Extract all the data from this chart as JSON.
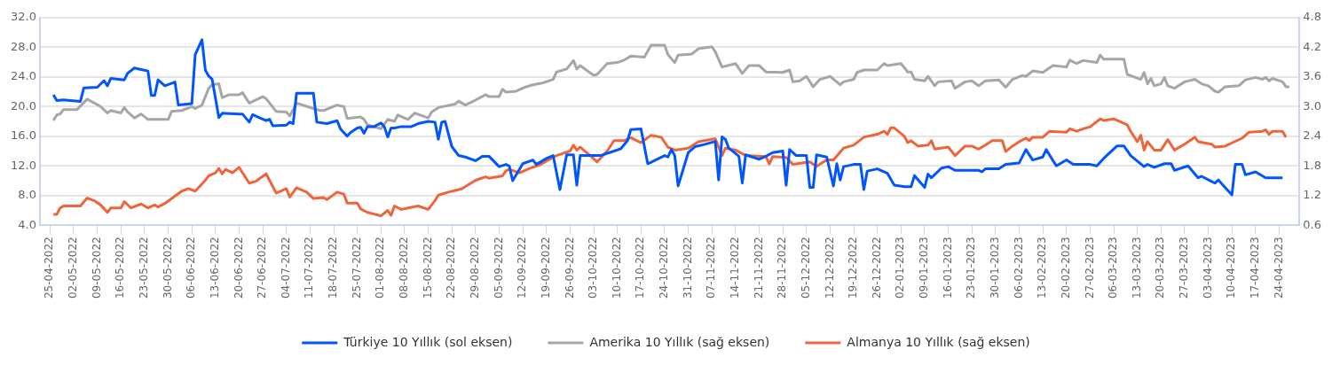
{
  "chart_data": {
    "type": "line",
    "grid": "y",
    "legend": "bottom",
    "xlim": [
      "2022-04-22",
      "2023-04-30"
    ],
    "xticks": [
      {
        "value": "2022-04-25",
        "label": "25-04-2022"
      },
      {
        "value": "2022-05-02",
        "label": "02-05-2022"
      },
      {
        "value": "2022-05-09",
        "label": "09-05-2022"
      },
      {
        "value": "2022-05-16",
        "label": "16-05-2022"
      },
      {
        "value": "2022-05-23",
        "label": "23-05-2022"
      },
      {
        "value": "2022-05-30",
        "label": "30-05-2022"
      },
      {
        "value": "2022-06-06",
        "label": "06-06-2022"
      },
      {
        "value": "2022-06-13",
        "label": "13-06-2022"
      },
      {
        "value": "2022-06-20",
        "label": "20-06-2022"
      },
      {
        "value": "2022-06-27",
        "label": "27-06-2022"
      },
      {
        "value": "2022-07-04",
        "label": "04-07-2022"
      },
      {
        "value": "2022-07-11",
        "label": "11-07-2022"
      },
      {
        "value": "2022-07-18",
        "label": "18-07-2022"
      },
      {
        "value": "2022-07-25",
        "label": "25-07-2022"
      },
      {
        "value": "2022-08-01",
        "label": "01-08-2022"
      },
      {
        "value": "2022-08-08",
        "label": "08-08-2022"
      },
      {
        "value": "2022-08-15",
        "label": "15-08-2022"
      },
      {
        "value": "2022-08-22",
        "label": "22-08-2022"
      },
      {
        "value": "2022-08-29",
        "label": "29-08-2022"
      },
      {
        "value": "2022-09-05",
        "label": "05-09-2022"
      },
      {
        "value": "2022-09-12",
        "label": "12-09-2022"
      },
      {
        "value": "2022-09-19",
        "label": "19-09-2022"
      },
      {
        "value": "2022-09-26",
        "label": "26-09-2022"
      },
      {
        "value": "2022-10-03",
        "label": "03-10-2022"
      },
      {
        "value": "2022-10-10",
        "label": "10-10-2022"
      },
      {
        "value": "2022-10-17",
        "label": "17-10-2022"
      },
      {
        "value": "2022-10-24",
        "label": "24-10-2022"
      },
      {
        "value": "2022-10-31",
        "label": "31-10-2022"
      },
      {
        "value": "2022-11-07",
        "label": "07-11-2022"
      },
      {
        "value": "2022-11-14",
        "label": "14-11-2022"
      },
      {
        "value": "2022-11-21",
        "label": "21-11-2022"
      },
      {
        "value": "2022-11-28",
        "label": "28-11-2022"
      },
      {
        "value": "2022-12-05",
        "label": "05-12-2022"
      },
      {
        "value": "2022-12-12",
        "label": "12-12-2022"
      },
      {
        "value": "2022-12-19",
        "label": "19-12-2022"
      },
      {
        "value": "2022-12-26",
        "label": "26-12-2022"
      },
      {
        "value": "2023-01-02",
        "label": "02-01-2023"
      },
      {
        "value": "2023-01-09",
        "label": "09-01-2023"
      },
      {
        "value": "2023-01-16",
        "label": "16-01-2023"
      },
      {
        "value": "2023-01-23",
        "label": "23-01-2023"
      },
      {
        "value": "2023-01-30",
        "label": "30-01-2023"
      },
      {
        "value": "2023-02-06",
        "label": "06-02-2023"
      },
      {
        "value": "2023-02-13",
        "label": "13-02-2023"
      },
      {
        "value": "2023-02-20",
        "label": "20-02-2023"
      },
      {
        "value": "2023-02-27",
        "label": "27-02-2023"
      },
      {
        "value": "2023-03-06",
        "label": "06-03-2023"
      },
      {
        "value": "2023-03-13",
        "label": "13-03-2023"
      },
      {
        "value": "2023-03-20",
        "label": "20-03-2023"
      },
      {
        "value": "2023-03-27",
        "label": "27-03-2023"
      },
      {
        "value": "2023-04-03",
        "label": "03-04-2023"
      },
      {
        "value": "2023-04-10",
        "label": "10-04-2023"
      },
      {
        "value": "2023-04-17",
        "label": "17-04-2023"
      },
      {
        "value": "2023-04-24",
        "label": "24-04-2023"
      }
    ],
    "ylim": [
      4,
      32
    ],
    "yticks": [
      {
        "value": 4,
        "label": "4.0"
      },
      {
        "value": 8,
        "label": "8.0"
      },
      {
        "value": 12,
        "label": "12.0"
      },
      {
        "value": 16,
        "label": "16.0"
      },
      {
        "value": 20,
        "label": "20.0"
      },
      {
        "value": 24,
        "label": "24.0"
      },
      {
        "value": 28,
        "label": "28.0"
      },
      {
        "value": 32,
        "label": "32.0"
      }
    ],
    "y2lim": [
      0.6,
      4.8
    ],
    "y2ticks": [
      0.6,
      1.2,
      1.8,
      2.4,
      {
        "value": 3,
        "label": "3.0"
      },
      3.6,
      4.2,
      4.8
    ],
    "series": [
      {
        "name": "Türkiye 10 Yıllık (sol eksen)",
        "color": "#0055ff",
        "x": [
          "2022-04-26",
          "2022-04-27",
          "2022-04-29",
          "2022-05-04",
          "2022-05-05",
          "2022-05-09",
          "2022-05-11",
          "2022-05-12",
          "2022-05-13",
          "2022-05-17",
          "2022-05-18",
          "2022-05-20",
          "2022-05-22",
          "2022-05-24",
          "2022-05-25",
          "2022-05-26",
          "2022-05-27",
          "2022-05-29",
          "2022-06-01",
          "2022-06-02",
          "2022-06-06",
          "2022-06-07",
          "2022-06-09",
          "2022-06-10",
          "2022-06-11",
          "2022-06-12",
          "2022-06-14",
          "2022-06-15",
          "2022-06-20",
          "2022-06-21",
          "2022-06-23",
          "2022-06-24",
          "2022-06-26",
          "2022-06-28",
          "2022-06-29",
          "2022-06-30",
          "2022-07-04",
          "2022-07-05",
          "2022-07-06",
          "2022-07-07",
          "2022-07-12",
          "2022-07-13",
          "2022-07-16",
          "2022-07-19",
          "2022-07-20",
          "2022-07-22",
          "2022-07-23",
          "2022-07-25",
          "2022-07-26",
          "2022-07-27",
          "2022-07-28",
          "2022-07-30",
          "2022-08-01",
          "2022-08-02",
          "2022-08-03",
          "2022-08-04",
          "2022-08-05",
          "2022-08-07",
          "2022-08-10",
          "2022-08-12",
          "2022-08-15",
          "2022-08-17",
          "2022-08-18",
          "2022-08-19",
          "2022-08-20",
          "2022-08-22",
          "2022-08-24",
          "2022-08-26",
          "2022-08-29",
          "2022-08-31",
          "2022-09-02",
          "2022-09-05",
          "2022-09-07",
          "2022-09-08",
          "2022-09-09",
          "2022-09-12",
          "2022-09-15",
          "2022-09-16",
          "2022-09-19",
          "2022-09-21",
          "2022-09-23",
          "2022-09-25",
          "2022-09-27",
          "2022-09-28",
          "2022-09-29",
          "2022-10-05",
          "2022-10-11",
          "2022-10-13",
          "2022-10-14",
          "2022-10-17",
          "2022-10-19",
          "2022-10-20",
          "2022-10-24",
          "2022-10-25",
          "2022-10-26",
          "2022-10-27",
          "2022-10-28",
          "2022-10-31",
          "2022-11-02",
          "2022-11-04",
          "2022-11-08",
          "2022-11-09",
          "2022-11-10",
          "2022-11-11",
          "2022-11-12",
          "2022-11-15",
          "2022-11-16",
          "2022-11-17",
          "2022-11-21",
          "2022-11-23",
          "2022-11-25",
          "2022-11-28",
          "2022-11-29",
          "2022-11-30",
          "2022-12-02",
          "2022-12-05",
          "2022-12-06",
          "2022-12-07",
          "2022-12-08",
          "2022-12-11",
          "2022-12-13",
          "2022-12-14",
          "2022-12-15",
          "2022-12-16",
          "2022-12-19",
          "2022-12-21",
          "2022-12-22",
          "2022-12-23",
          "2022-12-26",
          "2022-12-29",
          "2022-12-31",
          "2023-01-03",
          "2023-01-05",
          "2023-01-06",
          "2023-01-09",
          "2023-01-10",
          "2023-01-11",
          "2023-01-14",
          "2023-01-16",
          "2023-01-18",
          "2023-01-25",
          "2023-01-26",
          "2023-01-27",
          "2023-01-31",
          "2023-02-02",
          "2023-02-06",
          "2023-02-08",
          "2023-02-10",
          "2023-02-13",
          "2023-02-14",
          "2023-02-17",
          "2023-02-20",
          "2023-02-22",
          "2023-02-27",
          "2023-03-01",
          "2023-03-03",
          "2023-03-07",
          "2023-03-09",
          "2023-03-11",
          "2023-03-15",
          "2023-03-16",
          "2023-03-18",
          "2023-03-21",
          "2023-03-23",
          "2023-03-24",
          "2023-03-28",
          "2023-03-31",
          "2023-04-01",
          "2023-04-04",
          "2023-04-05",
          "2023-04-06",
          "2023-04-10",
          "2023-04-11",
          "2023-04-13",
          "2023-04-14",
          "2023-04-17",
          "2023-04-20",
          "2023-04-25"
        ],
        "values": [
          21.6,
          20.8,
          20.9,
          20.7,
          22.5,
          22.6,
          23.5,
          22.8,
          23.8,
          23.6,
          24.5,
          25.2,
          25.0,
          24.8,
          21.5,
          21.5,
          23.6,
          22.8,
          23.3,
          20.2,
          20.4,
          27.0,
          29.0,
          24.9,
          24.1,
          23.7,
          18.5,
          19.1,
          19.0,
          19.0,
          17.9,
          18.9,
          18.5,
          18.1,
          18.3,
          17.4,
          17.5,
          17.9,
          17.7,
          21.8,
          21.8,
          17.9,
          17.7,
          18.1,
          17.0,
          16.0,
          16.5,
          17.1,
          17.2,
          16.4,
          17.3,
          17.3,
          17.8,
          17.3,
          15.9,
          17.1,
          17.1,
          17.3,
          17.3,
          17.7,
          18.0,
          17.9,
          15.6,
          17.9,
          18.0,
          14.6,
          13.4,
          13.2,
          12.7,
          13.3,
          13.3,
          11.9,
          12.2,
          12.0,
          10.0,
          12.3,
          12.8,
          12.2,
          13.0,
          13.4,
          8.8,
          13.5,
          13.5,
          9.4,
          13.4,
          13.4,
          14.3,
          15.4,
          16.9,
          17.0,
          12.3,
          12.5,
          13.4,
          13.2,
          14.2,
          13.4,
          9.3,
          13.8,
          14.6,
          14.8,
          15.3,
          10.1,
          15.9,
          15.6,
          14.4,
          13.3,
          9.7,
          13.5,
          12.9,
          13.3,
          13.8,
          14.0,
          9.4,
          14.2,
          13.4,
          13.4,
          9.1,
          9.1,
          13.5,
          13.2,
          9.3,
          12.3,
          10.1,
          11.9,
          12.2,
          12.2,
          8.8,
          11.3,
          11.6,
          11.0,
          9.4,
          9.2,
          9.2,
          10.7,
          9.1,
          10.9,
          10.4,
          11.7,
          11.9,
          11.4,
          11.4,
          11.2,
          11.6,
          11.6,
          12.2,
          12.4,
          14.2,
          12.8,
          13.2,
          14.2,
          12.0,
          12.8,
          12.2,
          12.2,
          12.0,
          13.0,
          14.7,
          14.7,
          13.4,
          11.9,
          12.2,
          11.8,
          12.3,
          12.3,
          11.4,
          12.0,
          10.4,
          10.6,
          9.9,
          9.7,
          10.1,
          8.1,
          12.2,
          12.2,
          10.8,
          11.2,
          10.4,
          10.4
        ]
      },
      {
        "name": "Amerika 10 Yıllık (sağ eksen)",
        "color": "#a6a6a6",
        "axis": "y2",
        "x": [
          "2022-04-26",
          "2022-04-27",
          "2022-04-28",
          "2022-04-29",
          "2022-05-03",
          "2022-05-06",
          "2022-05-10",
          "2022-05-12",
          "2022-05-13",
          "2022-05-16",
          "2022-05-17",
          "2022-05-18",
          "2022-05-20",
          "2022-05-22",
          "2022-05-24",
          "2022-05-30",
          "2022-05-31",
          "2022-06-03",
          "2022-06-06",
          "2022-06-07",
          "2022-06-09",
          "2022-06-11",
          "2022-06-12",
          "2022-06-14",
          "2022-06-15",
          "2022-06-17",
          "2022-06-20",
          "2022-06-21",
          "2022-06-23",
          "2022-06-27",
          "2022-06-28",
          "2022-07-01",
          "2022-07-04",
          "2022-07-05",
          "2022-07-07",
          "2022-07-12",
          "2022-07-14",
          "2022-07-15",
          "2022-07-19",
          "2022-07-21",
          "2022-07-22",
          "2022-07-26",
          "2022-07-27",
          "2022-07-28",
          "2022-08-01",
          "2022-08-03",
          "2022-08-05",
          "2022-08-06",
          "2022-08-09",
          "2022-08-11",
          "2022-08-15",
          "2022-08-16",
          "2022-08-18",
          "2022-08-23",
          "2022-08-24",
          "2022-08-26",
          "2022-08-29",
          "2022-09-01",
          "2022-09-02",
          "2022-09-05",
          "2022-09-06",
          "2022-09-07",
          "2022-09-10",
          "2022-09-13",
          "2022-09-15",
          "2022-09-18",
          "2022-09-21",
          "2022-09-22",
          "2022-09-25",
          "2022-09-27",
          "2022-09-28",
          "2022-09-29",
          "2022-10-03",
          "2022-10-04",
          "2022-10-07",
          "2022-10-10",
          "2022-10-12",
          "2022-10-14",
          "2022-10-18",
          "2022-10-20",
          "2022-10-24",
          "2022-10-25",
          "2022-10-27",
          "2022-10-28",
          "2022-11-01",
          "2022-11-03",
          "2022-11-07",
          "2022-11-08",
          "2022-11-10",
          "2022-11-14",
          "2022-11-16",
          "2022-11-18",
          "2022-11-21",
          "2022-11-23",
          "2022-11-28",
          "2022-11-30",
          "2022-12-01",
          "2022-12-03",
          "2022-12-05",
          "2022-12-07",
          "2022-12-09",
          "2022-12-12",
          "2022-12-15",
          "2022-12-16",
          "2022-12-19",
          "2022-12-20",
          "2022-12-22",
          "2022-12-26",
          "2022-12-28",
          "2022-12-29",
          "2023-01-02",
          "2023-01-04",
          "2023-01-05",
          "2023-01-06",
          "2023-01-09",
          "2023-01-10",
          "2023-01-12",
          "2023-01-13",
          "2023-01-17",
          "2023-01-18",
          "2023-01-21",
          "2023-01-23",
          "2023-01-25",
          "2023-01-27",
          "2023-01-31",
          "2023-02-02",
          "2023-02-04",
          "2023-02-07",
          "2023-02-08",
          "2023-02-10",
          "2023-02-13",
          "2023-02-16",
          "2023-02-20",
          "2023-02-21",
          "2023-02-23",
          "2023-02-25",
          "2023-03-01",
          "2023-03-02",
          "2023-03-03",
          "2023-03-09",
          "2023-03-10",
          "2023-03-14",
          "2023-03-15",
          "2023-03-16",
          "2023-03-17",
          "2023-03-18",
          "2023-03-20",
          "2023-03-21",
          "2023-03-22",
          "2023-03-24",
          "2023-03-27",
          "2023-03-30",
          "2023-04-01",
          "2023-04-03",
          "2023-04-05",
          "2023-04-06",
          "2023-04-08",
          "2023-04-12",
          "2023-04-14",
          "2023-04-17",
          "2023-04-19",
          "2023-04-20",
          "2023-04-21",
          "2023-04-22",
          "2023-04-25",
          "2023-04-26",
          "2023-04-27"
        ],
        "values": [
          2.72,
          2.83,
          2.85,
          2.94,
          2.94,
          3.15,
          3.0,
          2.87,
          2.92,
          2.87,
          2.98,
          2.89,
          2.77,
          2.85,
          2.74,
          2.74,
          2.9,
          2.92,
          3.0,
          2.96,
          3.03,
          3.37,
          3.44,
          3.46,
          3.18,
          3.24,
          3.24,
          3.28,
          3.07,
          3.2,
          3.16,
          2.9,
          2.89,
          2.81,
          3.07,
          2.96,
          2.92,
          2.92,
          3.03,
          3.0,
          2.76,
          2.79,
          2.74,
          2.63,
          2.55,
          2.74,
          2.7,
          2.83,
          2.74,
          2.87,
          2.77,
          2.89,
          2.98,
          3.05,
          3.11,
          3.03,
          3.13,
          3.24,
          3.2,
          3.2,
          3.35,
          3.29,
          3.31,
          3.4,
          3.44,
          3.48,
          3.55,
          3.7,
          3.76,
          3.93,
          3.76,
          3.83,
          3.63,
          3.65,
          3.87,
          3.89,
          3.94,
          4.02,
          4.0,
          4.24,
          4.24,
          4.05,
          3.89,
          4.04,
          4.06,
          4.17,
          4.21,
          4.11,
          3.8,
          3.87,
          3.67,
          3.83,
          3.83,
          3.7,
          3.69,
          3.74,
          3.5,
          3.52,
          3.61,
          3.4,
          3.55,
          3.61,
          3.44,
          3.5,
          3.55,
          3.69,
          3.74,
          3.74,
          3.87,
          3.83,
          3.87,
          3.7,
          3.7,
          3.55,
          3.52,
          3.61,
          3.42,
          3.5,
          3.52,
          3.37,
          3.5,
          3.52,
          3.42,
          3.52,
          3.54,
          3.39,
          3.55,
          3.63,
          3.61,
          3.72,
          3.69,
          3.83,
          3.8,
          3.94,
          3.87,
          3.93,
          3.89,
          4.04,
          3.96,
          3.96,
          3.65,
          3.55,
          3.69,
          3.46,
          3.57,
          3.42,
          3.46,
          3.59,
          3.42,
          3.37,
          3.5,
          3.55,
          3.46,
          3.42,
          3.31,
          3.29,
          3.4,
          3.42,
          3.54,
          3.59,
          3.55,
          3.59,
          3.52,
          3.57,
          3.5,
          3.4,
          3.4
        ]
      },
      {
        "name": "Almanya 10 Yıllık (sağ eksen)",
        "color": "#f0643c",
        "axis": "y2",
        "x": [
          "2022-04-26",
          "2022-04-27",
          "2022-04-28",
          "2022-04-29",
          "2022-05-04",
          "2022-05-06",
          "2022-05-08",
          "2022-05-10",
          "2022-05-12",
          "2022-05-13",
          "2022-05-16",
          "2022-05-17",
          "2022-05-19",
          "2022-05-22",
          "2022-05-24",
          "2022-05-26",
          "2022-05-27",
          "2022-05-29",
          "2022-06-03",
          "2022-06-05",
          "2022-06-07",
          "2022-06-10",
          "2022-06-11",
          "2022-06-13",
          "2022-06-14",
          "2022-06-15",
          "2022-06-16",
          "2022-06-18",
          "2022-06-20",
          "2022-06-23",
          "2022-06-25",
          "2022-06-28",
          "2022-07-01",
          "2022-07-04",
          "2022-07-05",
          "2022-07-07",
          "2022-07-10",
          "2022-07-12",
          "2022-07-15",
          "2022-07-16",
          "2022-07-19",
          "2022-07-21",
          "2022-07-22",
          "2022-07-25",
          "2022-07-26",
          "2022-07-28",
          "2022-08-01",
          "2022-08-03",
          "2022-08-04",
          "2022-08-05",
          "2022-08-07",
          "2022-08-09",
          "2022-08-12",
          "2022-08-15",
          "2022-08-17",
          "2022-08-18",
          "2022-08-21",
          "2022-08-24",
          "2022-08-25",
          "2022-08-29",
          "2022-09-01",
          "2022-09-02",
          "2022-09-06",
          "2022-09-07",
          "2022-09-08",
          "2022-09-11",
          "2022-09-14",
          "2022-09-17",
          "2022-09-22",
          "2022-09-26",
          "2022-09-27",
          "2022-09-28",
          "2022-09-29",
          "2022-10-02",
          "2022-10-04",
          "2022-10-07",
          "2022-10-09",
          "2022-10-12",
          "2022-10-14",
          "2022-10-17",
          "2022-10-20",
          "2022-10-23",
          "2022-10-25",
          "2022-10-27",
          "2022-10-31",
          "2022-11-03",
          "2022-11-08",
          "2022-11-10",
          "2022-11-11",
          "2022-11-14",
          "2022-11-17",
          "2022-11-23",
          "2022-11-24",
          "2022-11-25",
          "2022-11-29",
          "2022-12-01",
          "2022-12-06",
          "2022-12-08",
          "2022-12-11",
          "2022-12-13",
          "2022-12-16",
          "2022-12-19",
          "2022-12-22",
          "2022-12-26",
          "2022-12-28",
          "2022-12-29",
          "2022-12-30",
          "2022-12-31",
          "2023-01-03",
          "2023-01-04",
          "2023-01-05",
          "2023-01-07",
          "2023-01-10",
          "2023-01-11",
          "2023-01-12",
          "2023-01-16",
          "2023-01-18",
          "2023-01-21",
          "2023-01-23",
          "2023-01-25",
          "2023-01-27",
          "2023-01-29",
          "2023-02-01",
          "2023-02-02",
          "2023-02-04",
          "2023-02-06",
          "2023-02-08",
          "2023-02-09",
          "2023-02-10",
          "2023-02-13",
          "2023-02-15",
          "2023-02-20",
          "2023-02-21",
          "2023-02-23",
          "2023-02-25",
          "2023-02-27",
          "2023-03-02",
          "2023-03-03",
          "2023-03-06",
          "2023-03-10",
          "2023-03-11",
          "2023-03-13",
          "2023-03-14",
          "2023-03-15",
          "2023-03-16",
          "2023-03-18",
          "2023-03-20",
          "2023-03-22",
          "2023-03-24",
          "2023-03-27",
          "2023-03-30",
          "2023-03-31",
          "2023-04-04",
          "2023-04-05",
          "2023-04-08",
          "2023-04-13",
          "2023-04-15",
          "2023-04-19",
          "2023-04-20",
          "2023-04-21",
          "2023-04-22",
          "2023-04-25",
          "2023-04-26"
        ],
        "values": [
          0.82,
          0.82,
          0.95,
          0.99,
          0.99,
          1.15,
          1.1,
          1.01,
          0.86,
          0.95,
          0.95,
          1.08,
          0.95,
          1.03,
          0.95,
          1.01,
          0.97,
          1.04,
          1.29,
          1.34,
          1.29,
          1.51,
          1.6,
          1.66,
          1.75,
          1.64,
          1.73,
          1.66,
          1.77,
          1.45,
          1.49,
          1.64,
          1.25,
          1.34,
          1.17,
          1.36,
          1.27,
          1.14,
          1.16,
          1.12,
          1.27,
          1.23,
          1.05,
          1.05,
          0.93,
          0.86,
          0.79,
          0.9,
          0.8,
          0.99,
          0.92,
          0.95,
          0.99,
          0.92,
          1.1,
          1.21,
          1.27,
          1.32,
          1.34,
          1.51,
          1.58,
          1.55,
          1.6,
          1.7,
          1.73,
          1.66,
          1.75,
          1.82,
          2.01,
          2.1,
          2.22,
          2.12,
          2.18,
          2.01,
          1.88,
          2.1,
          2.31,
          2.31,
          2.37,
          2.27,
          2.42,
          2.38,
          2.18,
          2.12,
          2.16,
          2.29,
          2.35,
          2.01,
          2.16,
          2.12,
          2.01,
          1.99,
          1.84,
          1.99,
          1.97,
          1.83,
          1.88,
          1.79,
          1.92,
          1.92,
          2.16,
          2.22,
          2.38,
          2.44,
          2.5,
          2.44,
          2.57,
          2.57,
          2.4,
          2.27,
          2.31,
          2.2,
          2.22,
          2.31,
          2.14,
          2.18,
          2.01,
          2.2,
          2.2,
          2.14,
          2.22,
          2.31,
          2.31,
          2.09,
          2.2,
          2.29,
          2.36,
          2.31,
          2.38,
          2.38,
          2.5,
          2.48,
          2.55,
          2.5,
          2.55,
          2.59,
          2.75,
          2.72,
          2.75,
          2.63,
          2.5,
          2.29,
          2.42,
          2.12,
          2.29,
          2.12,
          2.12,
          2.33,
          2.12,
          2.24,
          2.38,
          2.29,
          2.24,
          2.18,
          2.2,
          2.36,
          2.48,
          2.5,
          2.53,
          2.44,
          2.5,
          2.5,
          2.38
        ]
      }
    ]
  }
}
